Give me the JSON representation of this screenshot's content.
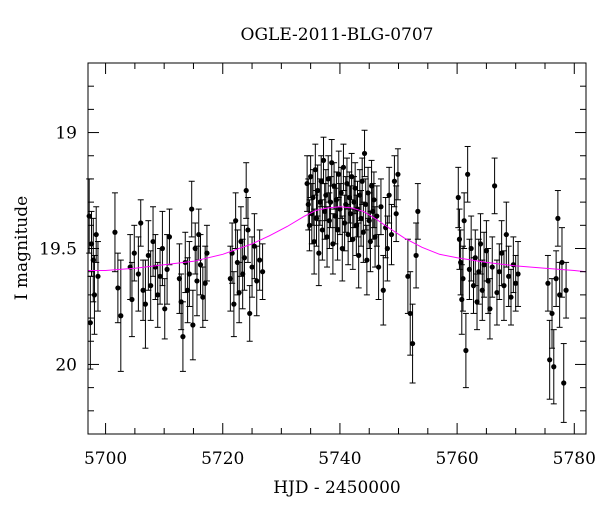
{
  "chart_data": {
    "type": "scatter",
    "title": "OGLE-2011-BLG-0707",
    "xlabel": "HJD - 2450000",
    "ylabel": "I magnitude",
    "xlim": [
      5697,
      5782
    ],
    "ylim": [
      20.3,
      18.7
    ],
    "y_inverted": true,
    "grid": false,
    "legend": "none",
    "xticks": [
      5700,
      5720,
      5740,
      5760,
      5780
    ],
    "xtick_labels": [
      "5700",
      "5720",
      "5740",
      "5760",
      "5780"
    ],
    "yticks": [
      19,
      19.5,
      20
    ],
    "ytick_labels": [
      "19",
      "19.5",
      "20"
    ],
    "colors": {
      "points": "#000000",
      "model": "#ff00ff"
    },
    "series": [
      {
        "type": "scatter_errorbar",
        "points": [
          {
            "x": 5697.2,
            "y": 19.36,
            "err": 0.16
          },
          {
            "x": 5697.6,
            "y": 19.48,
            "err": 0.14
          },
          {
            "x": 5697.9,
            "y": 19.55,
            "err": 0.18
          },
          {
            "x": 5698.1,
            "y": 19.7,
            "err": 0.17
          },
          {
            "x": 5698.4,
            "y": 19.44,
            "err": 0.12
          },
          {
            "x": 5698.7,
            "y": 19.62,
            "err": 0.15
          },
          {
            "x": 5697.4,
            "y": 19.82,
            "err": 0.2
          },
          {
            "x": 5701.6,
            "y": 19.43,
            "err": 0.17
          },
          {
            "x": 5702.1,
            "y": 19.67,
            "err": 0.15
          },
          {
            "x": 5702.6,
            "y": 19.79,
            "err": 0.24
          },
          {
            "x": 5704.2,
            "y": 19.58,
            "err": 0.14
          },
          {
            "x": 5704.5,
            "y": 19.72,
            "err": 0.16
          },
          {
            "x": 5704.9,
            "y": 19.52,
            "err": 0.12
          },
          {
            "x": 5705.6,
            "y": 19.61,
            "err": 0.16
          },
          {
            "x": 5706.0,
            "y": 19.39,
            "err": 0.1
          },
          {
            "x": 5706.4,
            "y": 19.68,
            "err": 0.13
          },
          {
            "x": 5706.8,
            "y": 19.74,
            "err": 0.19
          },
          {
            "x": 5707.3,
            "y": 19.53,
            "err": 0.15
          },
          {
            "x": 5707.7,
            "y": 19.66,
            "err": 0.15
          },
          {
            "x": 5708.1,
            "y": 19.47,
            "err": 0.15
          },
          {
            "x": 5708.5,
            "y": 19.58,
            "err": 0.14
          },
          {
            "x": 5708.9,
            "y": 19.7,
            "err": 0.14
          },
          {
            "x": 5709.3,
            "y": 19.62,
            "err": 0.12
          },
          {
            "x": 5709.7,
            "y": 19.5,
            "err": 0.16
          },
          {
            "x": 5710.1,
            "y": 19.76,
            "err": 0.13
          },
          {
            "x": 5710.5,
            "y": 19.59,
            "err": 0.15
          },
          {
            "x": 5710.9,
            "y": 19.45,
            "err": 0.12
          },
          {
            "x": 5712.6,
            "y": 19.63,
            "err": 0.15
          },
          {
            "x": 5712.9,
            "y": 19.73,
            "err": 0.12
          },
          {
            "x": 5713.2,
            "y": 19.88,
            "err": 0.15
          },
          {
            "x": 5713.6,
            "y": 19.56,
            "err": 0.13
          },
          {
            "x": 5714.0,
            "y": 19.68,
            "err": 0.14
          },
          {
            "x": 5714.3,
            "y": 19.61,
            "err": 0.14
          },
          {
            "x": 5714.7,
            "y": 19.33,
            "err": 0.12
          },
          {
            "x": 5714.9,
            "y": 19.83,
            "err": 0.15
          },
          {
            "x": 5715.3,
            "y": 19.5,
            "err": 0.11
          },
          {
            "x": 5715.6,
            "y": 19.64,
            "err": 0.15
          },
          {
            "x": 5715.9,
            "y": 19.44,
            "err": 0.11
          },
          {
            "x": 5716.2,
            "y": 19.57,
            "err": 0.13
          },
          {
            "x": 5716.6,
            "y": 19.71,
            "err": 0.13
          },
          {
            "x": 5717.0,
            "y": 19.65,
            "err": 0.16
          },
          {
            "x": 5717.3,
            "y": 19.52,
            "err": 0.12
          },
          {
            "x": 5721.3,
            "y": 19.63,
            "err": 0.14
          },
          {
            "x": 5721.6,
            "y": 19.52,
            "err": 0.13
          },
          {
            "x": 5721.9,
            "y": 19.74,
            "err": 0.14
          },
          {
            "x": 5722.2,
            "y": 19.38,
            "err": 0.12
          },
          {
            "x": 5722.5,
            "y": 19.56,
            "err": 0.14
          },
          {
            "x": 5722.8,
            "y": 19.69,
            "err": 0.13
          },
          {
            "x": 5723.1,
            "y": 19.47,
            "err": 0.15
          },
          {
            "x": 5723.4,
            "y": 19.61,
            "err": 0.15
          },
          {
            "x": 5723.7,
            "y": 19.54,
            "err": 0.14
          },
          {
            "x": 5724.0,
            "y": 19.25,
            "err": 0.12
          },
          {
            "x": 5724.3,
            "y": 19.42,
            "err": 0.14
          },
          {
            "x": 5724.6,
            "y": 19.78,
            "err": 0.12
          },
          {
            "x": 5725.0,
            "y": 19.58,
            "err": 0.13
          },
          {
            "x": 5725.4,
            "y": 19.49,
            "err": 0.14
          },
          {
            "x": 5725.8,
            "y": 19.64,
            "err": 0.15
          },
          {
            "x": 5726.3,
            "y": 19.55,
            "err": 0.13
          },
          {
            "x": 5726.8,
            "y": 19.6,
            "err": 0.12
          },
          {
            "x": 5734.4,
            "y": 19.22,
            "err": 0.12
          },
          {
            "x": 5734.6,
            "y": 19.31,
            "err": 0.11
          },
          {
            "x": 5734.8,
            "y": 19.4,
            "err": 0.11
          },
          {
            "x": 5735.0,
            "y": 19.19,
            "err": 0.09
          },
          {
            "x": 5735.2,
            "y": 19.35,
            "err": 0.13
          },
          {
            "x": 5735.4,
            "y": 19.28,
            "err": 0.12
          },
          {
            "x": 5735.6,
            "y": 19.47,
            "err": 0.14
          },
          {
            "x": 5735.8,
            "y": 19.16,
            "err": 0.11
          },
          {
            "x": 5736.0,
            "y": 19.37,
            "err": 0.12
          },
          {
            "x": 5736.2,
            "y": 19.25,
            "err": 0.11
          },
          {
            "x": 5736.4,
            "y": 19.52,
            "err": 0.14
          },
          {
            "x": 5736.6,
            "y": 19.3,
            "err": 0.1
          },
          {
            "x": 5736.8,
            "y": 19.21,
            "err": 0.11
          },
          {
            "x": 5737.0,
            "y": 19.42,
            "err": 0.13
          },
          {
            "x": 5737.2,
            "y": 19.12,
            "err": 0.1
          },
          {
            "x": 5737.4,
            "y": 19.34,
            "err": 0.12
          },
          {
            "x": 5737.6,
            "y": 19.27,
            "err": 0.11
          },
          {
            "x": 5737.8,
            "y": 19.45,
            "err": 0.13
          },
          {
            "x": 5738.0,
            "y": 19.2,
            "err": 0.1
          },
          {
            "x": 5738.2,
            "y": 19.38,
            "err": 0.12
          },
          {
            "x": 5738.4,
            "y": 19.3,
            "err": 0.11
          },
          {
            "x": 5738.6,
            "y": 19.13,
            "err": 0.1
          },
          {
            "x": 5738.8,
            "y": 19.48,
            "err": 0.13
          },
          {
            "x": 5739.0,
            "y": 19.23,
            "err": 0.1
          },
          {
            "x": 5739.2,
            "y": 19.36,
            "err": 0.12
          },
          {
            "x": 5739.4,
            "y": 19.29,
            "err": 0.12
          },
          {
            "x": 5739.6,
            "y": 19.42,
            "err": 0.13
          },
          {
            "x": 5739.8,
            "y": 19.18,
            "err": 0.1
          },
          {
            "x": 5740.0,
            "y": 19.33,
            "err": 0.11
          },
          {
            "x": 5740.2,
            "y": 19.26,
            "err": 0.11
          },
          {
            "x": 5740.4,
            "y": 19.5,
            "err": 0.14
          },
          {
            "x": 5740.6,
            "y": 19.15,
            "err": 0.1
          },
          {
            "x": 5740.8,
            "y": 19.39,
            "err": 0.12
          },
          {
            "x": 5741.0,
            "y": 19.31,
            "err": 0.12
          },
          {
            "x": 5741.2,
            "y": 19.22,
            "err": 0.11
          },
          {
            "x": 5741.4,
            "y": 19.44,
            "err": 0.13
          },
          {
            "x": 5741.6,
            "y": 19.28,
            "err": 0.11
          },
          {
            "x": 5741.8,
            "y": 19.35,
            "err": 0.12
          },
          {
            "x": 5742.0,
            "y": 19.19,
            "err": 0.1
          },
          {
            "x": 5742.2,
            "y": 19.46,
            "err": 0.13
          },
          {
            "x": 5742.4,
            "y": 19.3,
            "err": 0.11
          },
          {
            "x": 5742.6,
            "y": 19.24,
            "err": 0.11
          },
          {
            "x": 5742.8,
            "y": 19.4,
            "err": 0.13
          },
          {
            "x": 5743.0,
            "y": 19.33,
            "err": 0.12
          },
          {
            "x": 5743.2,
            "y": 19.53,
            "err": 0.14
          },
          {
            "x": 5743.4,
            "y": 19.27,
            "err": 0.11
          },
          {
            "x": 5743.6,
            "y": 19.37,
            "err": 0.12
          },
          {
            "x": 5743.8,
            "y": 19.21,
            "err": 0.1
          },
          {
            "x": 5744.0,
            "y": 19.43,
            "err": 0.13
          },
          {
            "x": 5744.2,
            "y": 19.09,
            "err": 0.1
          },
          {
            "x": 5744.4,
            "y": 19.31,
            "err": 0.11
          },
          {
            "x": 5744.6,
            "y": 19.55,
            "err": 0.15
          },
          {
            "x": 5744.8,
            "y": 19.26,
            "err": 0.11
          },
          {
            "x": 5745.0,
            "y": 19.38,
            "err": 0.12
          },
          {
            "x": 5745.2,
            "y": 19.47,
            "err": 0.13
          },
          {
            "x": 5745.4,
            "y": 19.23,
            "err": 0.11
          },
          {
            "x": 5745.6,
            "y": 19.34,
            "err": 0.12
          },
          {
            "x": 5745.8,
            "y": 19.29,
            "err": 0.12
          },
          {
            "x": 5746.0,
            "y": 19.45,
            "err": 0.13
          },
          {
            "x": 5746.3,
            "y": 19.36,
            "err": 0.13
          },
          {
            "x": 5746.6,
            "y": 19.58,
            "err": 0.14
          },
          {
            "x": 5747.0,
            "y": 19.32,
            "err": 0.12
          },
          {
            "x": 5747.4,
            "y": 19.68,
            "err": 0.15
          },
          {
            "x": 5747.8,
            "y": 19.41,
            "err": 0.13
          },
          {
            "x": 5748.1,
            "y": 19.5,
            "err": 0.14
          },
          {
            "x": 5748.4,
            "y": 19.27,
            "err": 0.12
          },
          {
            "x": 5748.8,
            "y": 19.44,
            "err": 0.13
          },
          {
            "x": 5749.3,
            "y": 19.21,
            "err": 0.11
          },
          {
            "x": 5749.6,
            "y": 19.35,
            "err": 0.12
          },
          {
            "x": 5749.9,
            "y": 19.18,
            "err": 0.11
          },
          {
            "x": 5751.6,
            "y": 19.62,
            "err": 0.16
          },
          {
            "x": 5752.0,
            "y": 19.78,
            "err": 0.18
          },
          {
            "x": 5752.4,
            "y": 19.91,
            "err": 0.17
          },
          {
            "x": 5753.0,
            "y": 19.53,
            "err": 0.14
          },
          {
            "x": 5753.3,
            "y": 19.34,
            "err": 0.12
          },
          {
            "x": 5760.2,
            "y": 19.28,
            "err": 0.13
          },
          {
            "x": 5760.4,
            "y": 19.46,
            "err": 0.13
          },
          {
            "x": 5760.6,
            "y": 19.56,
            "err": 0.14
          },
          {
            "x": 5760.8,
            "y": 19.72,
            "err": 0.15
          },
          {
            "x": 5761.0,
            "y": 19.63,
            "err": 0.14
          },
          {
            "x": 5761.2,
            "y": 19.38,
            "err": 0.12
          },
          {
            "x": 5761.5,
            "y": 19.94,
            "err": 0.16
          },
          {
            "x": 5761.8,
            "y": 19.18,
            "err": 0.12
          },
          {
            "x": 5762.1,
            "y": 19.59,
            "err": 0.13
          },
          {
            "x": 5762.4,
            "y": 19.5,
            "err": 0.14
          },
          {
            "x": 5762.8,
            "y": 19.66,
            "err": 0.12
          },
          {
            "x": 5763.1,
            "y": 19.54,
            "err": 0.12
          },
          {
            "x": 5763.4,
            "y": 19.73,
            "err": 0.12
          },
          {
            "x": 5763.7,
            "y": 19.6,
            "err": 0.14
          },
          {
            "x": 5764.0,
            "y": 19.48,
            "err": 0.13
          },
          {
            "x": 5764.3,
            "y": 19.68,
            "err": 0.13
          },
          {
            "x": 5764.6,
            "y": 19.57,
            "err": 0.14
          },
          {
            "x": 5765.0,
            "y": 19.51,
            "err": 0.13
          },
          {
            "x": 5765.3,
            "y": 19.64,
            "err": 0.14
          },
          {
            "x": 5765.6,
            "y": 19.76,
            "err": 0.13
          },
          {
            "x": 5766.0,
            "y": 19.58,
            "err": 0.13
          },
          {
            "x": 5766.4,
            "y": 19.23,
            "err": 0.12
          },
          {
            "x": 5766.8,
            "y": 19.69,
            "err": 0.14
          },
          {
            "x": 5767.2,
            "y": 19.6,
            "err": 0.12
          },
          {
            "x": 5767.6,
            "y": 19.52,
            "err": 0.14
          },
          {
            "x": 5768.0,
            "y": 19.66,
            "err": 0.15
          },
          {
            "x": 5768.4,
            "y": 19.44,
            "err": 0.14
          },
          {
            "x": 5768.8,
            "y": 19.62,
            "err": 0.13
          },
          {
            "x": 5769.2,
            "y": 19.71,
            "err": 0.12
          },
          {
            "x": 5769.6,
            "y": 19.57,
            "err": 0.12
          },
          {
            "x": 5770.0,
            "y": 19.65,
            "err": 0.12
          },
          {
            "x": 5770.4,
            "y": 19.61,
            "err": 0.14
          },
          {
            "x": 5775.5,
            "y": 19.65,
            "err": 0.12
          },
          {
            "x": 5775.8,
            "y": 19.98,
            "err": 0.17
          },
          {
            "x": 5776.2,
            "y": 19.78,
            "err": 0.15
          },
          {
            "x": 5776.5,
            "y": 20.01,
            "err": 0.16
          },
          {
            "x": 5776.9,
            "y": 19.63,
            "err": 0.12
          },
          {
            "x": 5777.2,
            "y": 19.37,
            "err": 0.12
          },
          {
            "x": 5777.5,
            "y": 19.7,
            "err": 0.14
          },
          {
            "x": 5777.9,
            "y": 19.56,
            "err": 0.15
          },
          {
            "x": 5778.2,
            "y": 20.08,
            "err": 0.17
          },
          {
            "x": 5778.6,
            "y": 19.68,
            "err": 0.12
          }
        ]
      },
      {
        "type": "line",
        "x": [
          5697,
          5700,
          5705,
          5710,
          5715,
          5720,
          5725,
          5728,
          5731,
          5734,
          5736,
          5738,
          5740,
          5742,
          5744,
          5746,
          5748,
          5751,
          5754,
          5757,
          5760,
          5765,
          5770,
          5775,
          5780,
          5782
        ],
        "values": [
          19.595,
          19.595,
          19.585,
          19.57,
          19.555,
          19.525,
          19.48,
          19.445,
          19.405,
          19.36,
          19.335,
          19.325,
          19.32,
          19.325,
          19.34,
          19.37,
          19.405,
          19.455,
          19.495,
          19.525,
          19.54,
          19.56,
          19.575,
          19.585,
          19.595,
          19.6
        ]
      }
    ]
  }
}
